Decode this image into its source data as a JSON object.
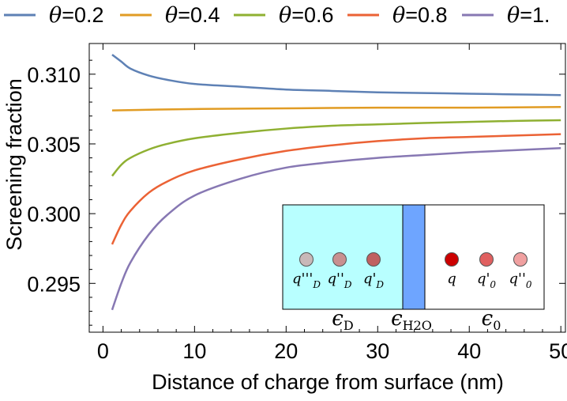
{
  "chart_data": {
    "type": "line",
    "title": "",
    "xlabel": "Distance of charge from surface (nm)",
    "ylabel": "Screening fraction",
    "xlim": [
      -1.5,
      50.5
    ],
    "ylim": [
      0.2915,
      0.3122
    ],
    "x_ticks": [
      0,
      10,
      20,
      30,
      40,
      50
    ],
    "x_tick_labels": [
      "0",
      "10",
      "20",
      "30",
      "40",
      "50"
    ],
    "y_ticks": [
      0.295,
      0.3,
      0.305,
      0.31
    ],
    "y_tick_labels": [
      "0.295",
      "0.300",
      "0.305",
      "0.310"
    ],
    "legend_position": "top",
    "series": [
      {
        "name": "θ=0.2",
        "legend_symbol": "θ",
        "legend_value": "=0.2",
        "color": "#5E81B5",
        "x": [
          1,
          2,
          3,
          5,
          7,
          10,
          15,
          20,
          25,
          30,
          35,
          40,
          45,
          50
        ],
        "values": [
          0.3114,
          0.3109,
          0.3104,
          0.3099,
          0.3096,
          0.3093,
          0.3091,
          0.3089,
          0.3088,
          0.3087,
          0.30865,
          0.3086,
          0.30855,
          0.3085
        ]
      },
      {
        "name": "θ=0.4",
        "legend_symbol": "θ",
        "legend_value": "=0.4",
        "color": "#E19C24",
        "x": [
          1,
          5,
          10,
          20,
          30,
          40,
          50
        ],
        "values": [
          0.3074,
          0.30745,
          0.3075,
          0.30755,
          0.3076,
          0.3076,
          0.30765
        ]
      },
      {
        "name": "θ=0.6",
        "legend_symbol": "θ",
        "legend_value": "=0.6",
        "color": "#8FB032",
        "x": [
          1,
          2,
          3,
          5,
          7,
          10,
          15,
          20,
          25,
          30,
          35,
          40,
          45,
          50
        ],
        "values": [
          0.3027,
          0.3035,
          0.304,
          0.3046,
          0.305,
          0.3054,
          0.3058,
          0.3061,
          0.3063,
          0.3064,
          0.3065,
          0.30658,
          0.30665,
          0.3067
        ]
      },
      {
        "name": "θ=0.8",
        "legend_symbol": "θ",
        "legend_value": "=0.8",
        "color": "#EB6235",
        "x": [
          1,
          2,
          3,
          5,
          7,
          10,
          15,
          20,
          25,
          30,
          35,
          40,
          45,
          50
        ],
        "values": [
          0.2978,
          0.2992,
          0.3002,
          0.3015,
          0.3023,
          0.3031,
          0.3039,
          0.3045,
          0.3049,
          0.3052,
          0.3054,
          0.3055,
          0.3056,
          0.3057
        ]
      },
      {
        "name": "θ=1.",
        "legend_symbol": "θ",
        "legend_value": "=1.",
        "color": "#8778B3",
        "x": [
          1,
          2,
          3,
          5,
          7,
          10,
          15,
          20,
          25,
          30,
          35,
          40,
          45,
          50
        ],
        "values": [
          0.2931,
          0.295,
          0.2965,
          0.2985,
          0.2999,
          0.3013,
          0.3025,
          0.3033,
          0.3037,
          0.304,
          0.3042,
          0.3044,
          0.30455,
          0.3047
        ]
      }
    ],
    "inset": {
      "description_labels": {
        "left_charges": [
          "q'''",
          "q''",
          "q'"
        ],
        "left_charges_subscript": "D",
        "right_charges": [
          "q",
          "q'",
          "q''"
        ],
        "right_charges_subscript": [
          "",
          "0",
          "0"
        ],
        "epsilon": "ϵ",
        "epsilon_subscripts": [
          "D",
          "H2O",
          "0"
        ]
      },
      "colors": {
        "dielectric_region": "#B8FFFF",
        "water_layer": "#6EA5FF",
        "left_charge_colors": [
          "#C8B8B8",
          "#C89090",
          "#C06060"
        ],
        "right_charge_colors": [
          "#CC0000",
          "#E06060",
          "#F0A0A0"
        ]
      }
    }
  }
}
